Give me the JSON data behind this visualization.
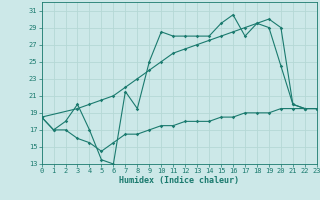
{
  "line1_x": [
    0,
    1,
    2,
    3,
    4,
    5,
    6,
    7,
    8,
    9,
    10,
    11,
    12,
    13,
    14,
    15,
    16,
    17,
    18,
    19,
    20,
    21,
    22,
    23
  ],
  "line1_y": [
    18.5,
    17.0,
    18.0,
    20.0,
    17.0,
    13.5,
    13.0,
    21.5,
    19.5,
    25.0,
    28.5,
    28.0,
    28.0,
    28.0,
    28.0,
    29.5,
    30.5,
    28.0,
    29.5,
    29.0,
    24.5,
    20.0,
    19.5,
    19.5
  ],
  "line2_x": [
    0,
    3,
    4,
    5,
    6,
    7,
    8,
    9,
    10,
    11,
    12,
    13,
    14,
    15,
    16,
    17,
    18,
    19,
    20,
    21,
    22,
    23
  ],
  "line2_y": [
    18.5,
    19.5,
    20.0,
    20.5,
    21.0,
    22.0,
    23.0,
    24.0,
    25.0,
    26.0,
    26.5,
    27.0,
    27.5,
    28.0,
    28.5,
    29.0,
    29.5,
    30.0,
    29.0,
    20.0,
    19.5,
    19.5
  ],
  "line3_x": [
    0,
    1,
    2,
    3,
    4,
    5,
    6,
    7,
    8,
    9,
    10,
    11,
    12,
    13,
    14,
    15,
    16,
    17,
    18,
    19,
    20,
    21,
    22,
    23
  ],
  "line3_y": [
    18.5,
    17.0,
    17.0,
    16.0,
    15.5,
    14.5,
    15.5,
    16.5,
    16.5,
    17.0,
    17.5,
    17.5,
    18.0,
    18.0,
    18.0,
    18.5,
    18.5,
    19.0,
    19.0,
    19.0,
    19.5,
    19.5,
    19.5,
    19.5
  ],
  "color": "#1a7a6e",
  "bg_color": "#cce8e8",
  "grid_color": "#b0d8d8",
  "xlabel": "Humidex (Indice chaleur)",
  "xlim": [
    0,
    23
  ],
  "ylim": [
    13,
    32
  ],
  "yticks": [
    13,
    15,
    17,
    19,
    21,
    23,
    25,
    27,
    29,
    31
  ],
  "xticks": [
    0,
    1,
    2,
    3,
    4,
    5,
    6,
    7,
    8,
    9,
    10,
    11,
    12,
    13,
    14,
    15,
    16,
    17,
    18,
    19,
    20,
    21,
    22,
    23
  ]
}
